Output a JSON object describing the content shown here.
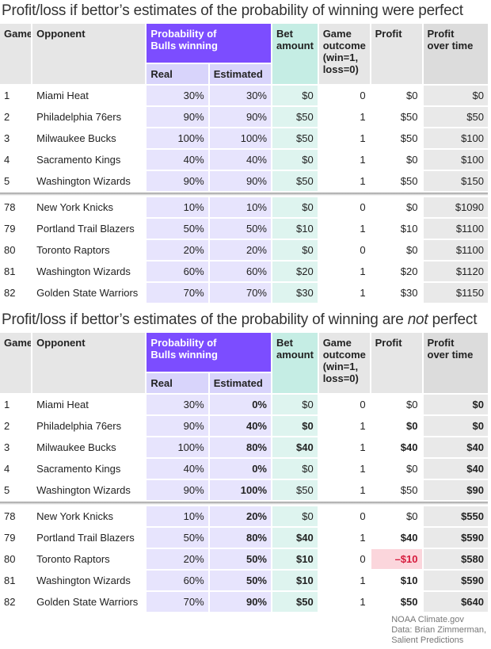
{
  "tables": [
    {
      "title": "Profit/loss if bettor’s estimates of the probability of winning were perfect",
      "headers": {
        "game": "Game",
        "opponent": "Opponent",
        "prob_group": "Probability of Bulls winning",
        "real": "Real",
        "estimated": "Estimated",
        "bet": "Bet amount",
        "outcome": "Game outcome (win=1, loss=0)",
        "profit": "Profit",
        "profit_over_time": "Profit over time"
      },
      "rows_top": [
        [
          "1",
          "Miami Heat",
          "30%",
          "30%",
          "$0",
          "0",
          "$0",
          "$0"
        ],
        [
          "2",
          "Philadelphia 76ers",
          "90%",
          "90%",
          "$50",
          "1",
          "$50",
          "$50"
        ],
        [
          "3",
          "Milwaukee Bucks",
          "100%",
          "100%",
          "$50",
          "1",
          "$50",
          "$100"
        ],
        [
          "4",
          "Sacramento Kings",
          "40%",
          "40%",
          "$0",
          "1",
          "$0",
          "$100"
        ],
        [
          "5",
          "Washington Wizards",
          "90%",
          "90%",
          "$50",
          "1",
          "$50",
          "$150"
        ]
      ],
      "rows_bottom": [
        [
          "78",
          "New York Knicks",
          "10%",
          "10%",
          "$0",
          "0",
          "$0",
          "$1090"
        ],
        [
          "79",
          "Portland Trail Blazers",
          "50%",
          "50%",
          "$10",
          "1",
          "$10",
          "$1100"
        ],
        [
          "80",
          "Toronto Raptors",
          "20%",
          "20%",
          "$0",
          "0",
          "$0",
          "$1100"
        ],
        [
          "81",
          "Washington Wizards",
          "60%",
          "60%",
          "$20",
          "1",
          "$20",
          "$1120"
        ],
        [
          "82",
          "Golden State Warriors",
          "70%",
          "70%",
          "$30",
          "1",
          "$30",
          "$1150"
        ]
      ]
    },
    {
      "title_pre": "Profit/loss if bettor’s estimates of the probability of winning are ",
      "title_em": "not",
      "title_post": " perfect",
      "headers": {
        "game": "Game",
        "opponent": "Opponent",
        "prob_group": "Probability of Bulls winning",
        "real": "Real",
        "estimated": "Estimated",
        "bet": "Bet amount",
        "outcome": "Game outcome (win=1, loss=0)",
        "profit": "Profit",
        "profit_over_time": "Profit over time"
      },
      "rows_top": [
        [
          "1",
          "Miami Heat",
          "30%",
          "0%",
          "$0",
          "0",
          "$0",
          "$0"
        ],
        [
          "2",
          "Philadelphia 76ers",
          "90%",
          "40%",
          "$0",
          "1",
          "$0",
          "$0"
        ],
        [
          "3",
          "Milwaukee Bucks",
          "100%",
          "80%",
          "$40",
          "1",
          "$40",
          "$40"
        ],
        [
          "4",
          "Sacramento Kings",
          "40%",
          "0%",
          "$0",
          "1",
          "$0",
          "$40"
        ],
        [
          "5",
          "Washington Wizards",
          "90%",
          "100%",
          "$50",
          "1",
          "$50",
          "$90"
        ]
      ],
      "rows_bottom": [
        [
          "78",
          "New York Knicks",
          "10%",
          "20%",
          "$0",
          "0",
          "$0",
          "$550"
        ],
        [
          "79",
          "Portland Trail Blazers",
          "50%",
          "80%",
          "$40",
          "1",
          "$40",
          "$590"
        ],
        [
          "80",
          "Toronto Raptors",
          "20%",
          "50%",
          "$10",
          "0",
          "–$10",
          "$580"
        ],
        [
          "81",
          "Washington Wizards",
          "60%",
          "50%",
          "$10",
          "1",
          "$10",
          "$590"
        ],
        [
          "82",
          "Golden State Warriors",
          "70%",
          "90%",
          "$50",
          "1",
          "$50",
          "$640"
        ]
      ],
      "bold_cells_top": [
        [
          0,
          3
        ],
        [
          0,
          7
        ],
        [
          1,
          3
        ],
        [
          1,
          4
        ],
        [
          1,
          6
        ],
        [
          1,
          7
        ],
        [
          2,
          3
        ],
        [
          2,
          4
        ],
        [
          2,
          6
        ],
        [
          2,
          7
        ],
        [
          3,
          3
        ],
        [
          3,
          7
        ],
        [
          4,
          3
        ],
        [
          4,
          7
        ]
      ],
      "bold_cells_bottom": [
        [
          0,
          3
        ],
        [
          0,
          7
        ],
        [
          1,
          3
        ],
        [
          1,
          4
        ],
        [
          1,
          6
        ],
        [
          1,
          7
        ],
        [
          2,
          3
        ],
        [
          2,
          4
        ],
        [
          2,
          6
        ],
        [
          2,
          7
        ],
        [
          3,
          3
        ],
        [
          3,
          4
        ],
        [
          3,
          6
        ],
        [
          3,
          7
        ],
        [
          4,
          3
        ],
        [
          4,
          4
        ],
        [
          4,
          6
        ],
        [
          4,
          7
        ]
      ]
    }
  ],
  "credit": {
    "line1": "NOAA Climate.gov",
    "line2": "Data: Brian Zimmerman,",
    "line3": "Salient Predictions"
  },
  "colors": {
    "purple_header": "#7c4dff",
    "lavender": "#d8d4fb",
    "mint": "#c5ede4",
    "gray": "#e6e6e6",
    "negative_bg": "#fbd6dc",
    "negative_text": "#d61a3c"
  }
}
